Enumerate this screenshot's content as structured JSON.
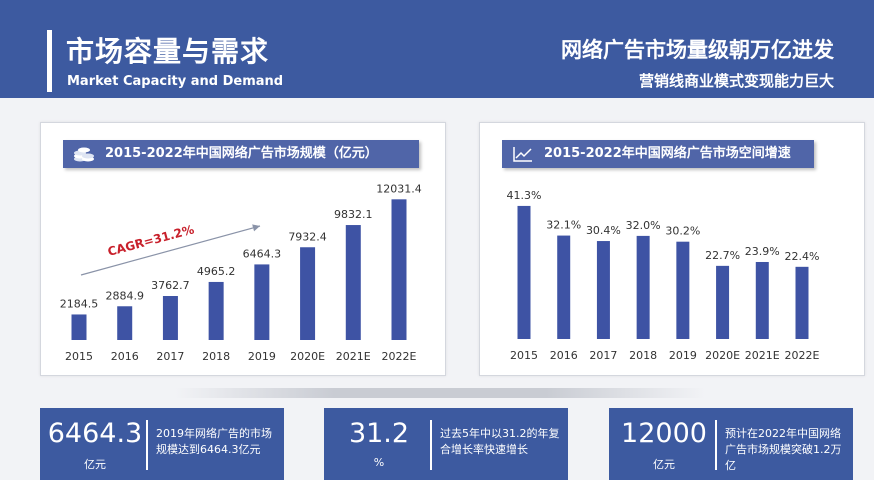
{
  "header": {
    "title_cn": "市场容量与需求",
    "title_en": "Market Capacity and Demand",
    "slogan_main": "网络广告市场量级朝万亿进发",
    "slogan_sub": "营销线商业模式变现能力巨大"
  },
  "colors": {
    "accent": "#3d5aa0",
    "bar": "#3e53a4",
    "cagr": "#c8202b"
  },
  "chart_data": [
    {
      "type": "bar",
      "title": "2015-2022年中国网络广告市场规模（亿元）",
      "icon": "coins-icon",
      "categories": [
        "2015",
        "2016",
        "2017",
        "2018",
        "2019",
        "2020E",
        "2021E",
        "2022E"
      ],
      "values": [
        2184.5,
        2884.9,
        3762.7,
        4965.2,
        6464.3,
        7932.4,
        9832.1,
        12031.4
      ],
      "value_labels": [
        "2184.5",
        "2884.9",
        "3762.7",
        "4965.2",
        "6464.3",
        "7932.4",
        "9832.1",
        "12031.4"
      ],
      "annotation": "CAGR=31.2%",
      "ylim": [
        0,
        13000
      ]
    },
    {
      "type": "bar",
      "title": "2015-2022年中国网络广告市场空间增速",
      "icon": "line-chart-icon",
      "categories": [
        "2015",
        "2016",
        "2017",
        "2018",
        "2019",
        "2020E",
        "2021E",
        "2022E"
      ],
      "values": [
        41.3,
        32.1,
        30.4,
        32.0,
        30.2,
        22.7,
        23.9,
        22.4
      ],
      "value_labels": [
        "41.3%",
        "32.1%",
        "30.4%",
        "32.0%",
        "30.2%",
        "22.7%",
        "23.9%",
        "22.4%"
      ],
      "ylim": [
        0,
        45
      ]
    }
  ],
  "stats": [
    {
      "value": "6464.3",
      "unit": "亿元",
      "desc": "2019年网络广告的市场规模达到6464.3亿元"
    },
    {
      "value": "31.2",
      "unit": "%",
      "desc": "过去5年中以31.2的年复合增长率快速增长"
    },
    {
      "value": "12000",
      "unit": "亿元",
      "desc": "预计在2022年中国网络广告市场规模突破1.2万亿"
    }
  ]
}
